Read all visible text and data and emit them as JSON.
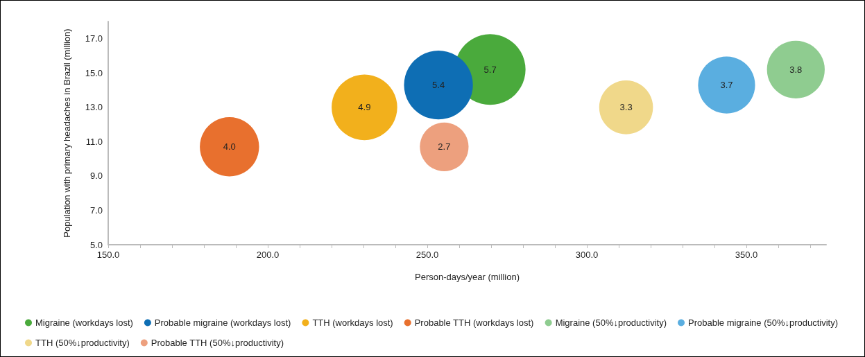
{
  "chart_data": {
    "type": "bubble",
    "xlabel": "Person-days/year (million)",
    "ylabel": "Population with primary headaches in Brazil (million)",
    "xlim": [
      150,
      375
    ],
    "ylim": [
      5,
      18
    ],
    "xticks": [
      {
        "value": 150,
        "label": "150.0"
      },
      {
        "value": 160,
        "label": null
      },
      {
        "value": 170,
        "label": null
      },
      {
        "value": 180,
        "label": null
      },
      {
        "value": 190,
        "label": null
      },
      {
        "value": 200,
        "label": "200.0"
      },
      {
        "value": 210,
        "label": null
      },
      {
        "value": 220,
        "label": null
      },
      {
        "value": 230,
        "label": null
      },
      {
        "value": 240,
        "label": null
      },
      {
        "value": 250,
        "label": "250.0"
      },
      {
        "value": 260,
        "label": null
      },
      {
        "value": 270,
        "label": null
      },
      {
        "value": 280,
        "label": null
      },
      {
        "value": 290,
        "label": null
      },
      {
        "value": 300,
        "label": "300.0"
      },
      {
        "value": 310,
        "label": null
      },
      {
        "value": 320,
        "label": null
      },
      {
        "value": 330,
        "label": null
      },
      {
        "value": 340,
        "label": null
      },
      {
        "value": 350,
        "label": "350.0"
      },
      {
        "value": 360,
        "label": null
      },
      {
        "value": 370,
        "label": null
      }
    ],
    "yticks": [
      {
        "value": 5,
        "label": "5.0"
      },
      {
        "value": 7,
        "label": "7.0"
      },
      {
        "value": 9,
        "label": "9.0"
      },
      {
        "value": 11,
        "label": "11.0"
      },
      {
        "value": 13,
        "label": "13.0"
      },
      {
        "value": 15,
        "label": "15.0"
      },
      {
        "value": 17,
        "label": "17.0"
      }
    ],
    "grid": false,
    "legend": "bottom",
    "marker": "circle",
    "series": [
      {
        "name": "Migraine (workdays lost)",
        "color": "#4aaa3c",
        "x": [
          269.7
        ],
        "values": [
          15.2
        ],
        "sizes": [
          5.7
        ],
        "value_labels": [
          "5.7"
        ]
      },
      {
        "name": "Probable migraine (workdays lost)",
        "color": "#0e6eb4",
        "x": [
          253.5
        ],
        "values": [
          14.3
        ],
        "sizes": [
          5.4
        ],
        "value_labels": [
          "5.4"
        ]
      },
      {
        "name": "TTH (workdays lost)",
        "color": "#f2b01c",
        "x": [
          230.3
        ],
        "values": [
          13.0
        ],
        "sizes": [
          4.9
        ],
        "value_labels": [
          "4.9"
        ]
      },
      {
        "name": "Probable TTH (workdays lost)",
        "color": "#e8702e",
        "x": [
          188.0
        ],
        "values": [
          10.7
        ],
        "sizes": [
          4.0
        ],
        "value_labels": [
          "4.0"
        ]
      },
      {
        "name": "Migraine (50%↓productivity)",
        "color": "#8fcc90",
        "x": [
          365.5
        ],
        "values": [
          15.2
        ],
        "sizes": [
          3.8
        ],
        "value_labels": [
          "3.8"
        ]
      },
      {
        "name": "Probable migraine (50%↓productivity)",
        "color": "#5aaee0",
        "x": [
          343.8
        ],
        "values": [
          14.3
        ],
        "sizes": [
          3.7
        ],
        "value_labels": [
          "3.7"
        ]
      },
      {
        "name": "TTH (50%↓productivity)",
        "color": "#f0d88a",
        "x": [
          312.3
        ],
        "values": [
          13.0
        ],
        "sizes": [
          3.3
        ],
        "value_labels": [
          "3.3"
        ]
      },
      {
        "name": "Probable TTH (50%↓productivity)",
        "color": "#eda07e",
        "x": [
          255.3
        ],
        "values": [
          10.7
        ],
        "sizes": [
          2.7
        ],
        "value_labels": [
          "2.7"
        ]
      }
    ]
  }
}
